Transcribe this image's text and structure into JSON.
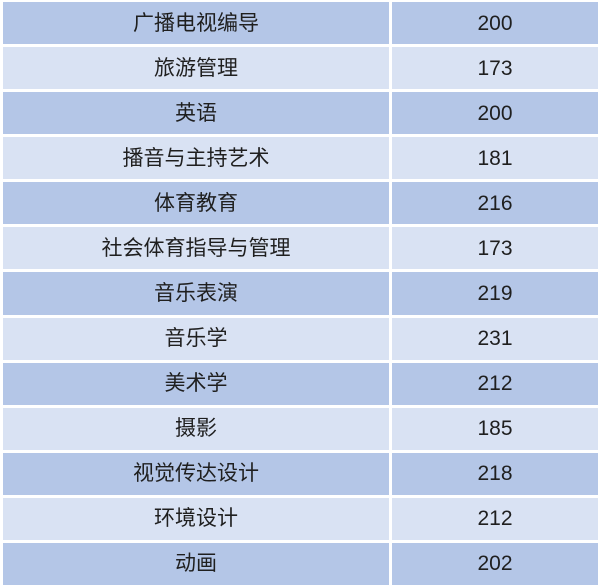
{
  "table": {
    "columns": [
      "major",
      "score"
    ],
    "rows": [
      {
        "major": "广播电视编导",
        "score": "200"
      },
      {
        "major": "旅游管理",
        "score": "173"
      },
      {
        "major": "英语",
        "score": "200"
      },
      {
        "major": "播音与主持艺术",
        "score": "181"
      },
      {
        "major": "体育教育",
        "score": "216"
      },
      {
        "major": "社会体育指导与管理",
        "score": "173"
      },
      {
        "major": "音乐表演",
        "score": "219"
      },
      {
        "major": "音乐学",
        "score": "231"
      },
      {
        "major": "美术学",
        "score": "212"
      },
      {
        "major": "摄影",
        "score": "185"
      },
      {
        "major": "视觉传达设计",
        "score": "218"
      },
      {
        "major": "环境设计",
        "score": "212"
      },
      {
        "major": "动画",
        "score": "202"
      }
    ],
    "colors": {
      "row_dark": "#b4c6e7",
      "row_light": "#d9e2f3",
      "text": "#1f1f1f",
      "divider": "#ffffff"
    }
  }
}
